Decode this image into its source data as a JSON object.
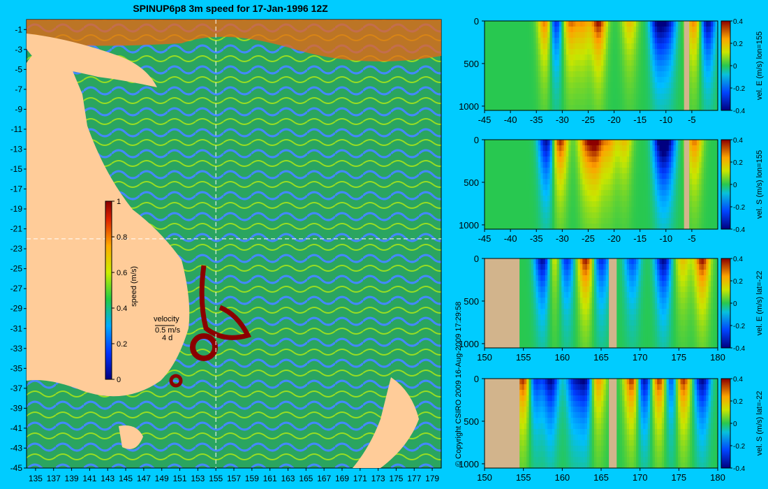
{
  "title": "SPINUP6p8 3m speed for 17-Jan-1996 12Z",
  "copyright": "© Copyright CSIRO 2009   16-Aug-2009 17:29:58",
  "map": {
    "x_ticks": [
      "135",
      "137",
      "139",
      "141",
      "143",
      "145",
      "147",
      "149",
      "151",
      "153",
      "155",
      "157",
      "159",
      "161",
      "163",
      "165",
      "167",
      "169",
      "171",
      "173",
      "175",
      "177",
      "179"
    ],
    "y_ticks": [
      "-1",
      "-3",
      "-5",
      "-7",
      "-9",
      "-11",
      "-13",
      "-15",
      "-17",
      "-19",
      "-21",
      "-23",
      "-25",
      "-27",
      "-29",
      "-31",
      "-33",
      "-35",
      "-37",
      "-39",
      "-41",
      "-43",
      "-45"
    ],
    "colorbar_label": "speed (m/s)",
    "colorbar_ticks": [
      "1",
      "0.8",
      "0.6",
      "0.4",
      "0.2",
      "0"
    ],
    "velocity_key": [
      "velocity",
      "0.5 m/s",
      "4 d"
    ],
    "section_lon": 155,
    "section_lat": -22,
    "colors": {
      "ocean": "#2a9a55",
      "land": "#ffcc99",
      "fast": "#8b0000"
    }
  },
  "chart_data": [
    {
      "type": "heatmap",
      "ylabel": "vel. E (m/s) lon=155",
      "x_ticks": [
        "-45",
        "-40",
        "-35",
        "-30",
        "-25",
        "-20",
        "-15",
        "-10",
        "-5"
      ],
      "y_ticks": [
        "0",
        "500",
        "1000"
      ],
      "colorbar_ticks": [
        "0.4",
        "0.2",
        "0",
        "-0.2",
        "-0.4"
      ],
      "xlim": [
        -45,
        0
      ],
      "ylim": [
        0,
        1050
      ],
      "clim": [
        -0.4,
        0.4
      ],
      "land_x": [
        [
          -6.5,
          -5.5
        ]
      ],
      "cores": [
        [
          -33,
          0.4
        ],
        [
          -31.5,
          -0.4
        ],
        [
          -28.5,
          0.3
        ],
        [
          -26,
          0.25
        ],
        [
          -23,
          0.4
        ],
        [
          -17,
          0.2
        ],
        [
          -11.5,
          -0.4
        ],
        [
          -9.5,
          -0.3
        ],
        [
          -2,
          -0.4
        ],
        [
          -4.5,
          0.3
        ]
      ]
    },
    {
      "type": "heatmap",
      "ylabel": "vel. S (m/s) lon=155",
      "x_ticks": [
        "-45",
        "-40",
        "-35",
        "-30",
        "-25",
        "-20",
        "-15",
        "-10",
        "-5"
      ],
      "y_ticks": [
        "0",
        "500",
        "1000"
      ],
      "colorbar_ticks": [
        "0.4",
        "0.2",
        "0",
        "-0.2",
        "-0.4"
      ],
      "xlim": [
        -45,
        0
      ],
      "ylim": [
        0,
        1050
      ],
      "clim": [
        -0.4,
        0.4
      ],
      "land_x": [
        [
          -6.5,
          -5.5
        ]
      ],
      "cores": [
        [
          -33,
          -0.4
        ],
        [
          -30.5,
          0.4
        ],
        [
          -25.5,
          0.3
        ],
        [
          -23.5,
          0.4
        ],
        [
          -21,
          0.25
        ],
        [
          -18,
          0.2
        ],
        [
          -11,
          -0.4
        ],
        [
          -9.5,
          -0.3
        ],
        [
          -4.5,
          0.3
        ]
      ]
    },
    {
      "type": "heatmap",
      "ylabel": "vel. E (m/s) lat=-22",
      "x_ticks": [
        "150",
        "155",
        "160",
        "165",
        "170",
        "175",
        "180"
      ],
      "y_ticks": [
        "0",
        "500",
        "1000"
      ],
      "colorbar_ticks": [
        "0.4",
        "0.2",
        "0",
        "-0.2",
        "-0.4"
      ],
      "xlim": [
        150,
        180
      ],
      "ylim": [
        0,
        1050
      ],
      "clim": [
        -0.4,
        0.4
      ],
      "land_x": [
        [
          150,
          154.5
        ],
        [
          166,
          167
        ]
      ],
      "cores": [
        [
          157.5,
          -0.4
        ],
        [
          159,
          0.2
        ],
        [
          160.5,
          -0.3
        ],
        [
          163,
          0.4
        ],
        [
          165,
          -0.3
        ],
        [
          169,
          -0.25
        ],
        [
          173,
          -0.4
        ],
        [
          175.5,
          0.2
        ],
        [
          178,
          0.4
        ]
      ]
    },
    {
      "type": "heatmap",
      "ylabel": "vel. S (m/s) lat=-22",
      "x_ticks": [
        "150",
        "155",
        "160",
        "165",
        "170",
        "175",
        "180"
      ],
      "y_ticks": [
        "0",
        "500",
        "1000"
      ],
      "colorbar_ticks": [
        "0.4",
        "0.2",
        "0",
        "-0.2",
        "-0.4"
      ],
      "xlim": [
        150,
        180
      ],
      "ylim": [
        0,
        1050
      ],
      "clim": [
        -0.4,
        0.4
      ],
      "land_x": [
        [
          150,
          154.5
        ],
        [
          166,
          167
        ]
      ],
      "cores": [
        [
          155,
          0.4
        ],
        [
          156.5,
          -0.3
        ],
        [
          158.5,
          -0.4
        ],
        [
          161.5,
          -0.3
        ],
        [
          163,
          -0.4
        ],
        [
          164.5,
          0.3
        ],
        [
          169,
          0.4
        ],
        [
          170.5,
          -0.4
        ],
        [
          172.5,
          0.4
        ],
        [
          174,
          -0.3
        ],
        [
          175.5,
          0.4
        ],
        [
          178,
          -0.4
        ]
      ]
    }
  ]
}
